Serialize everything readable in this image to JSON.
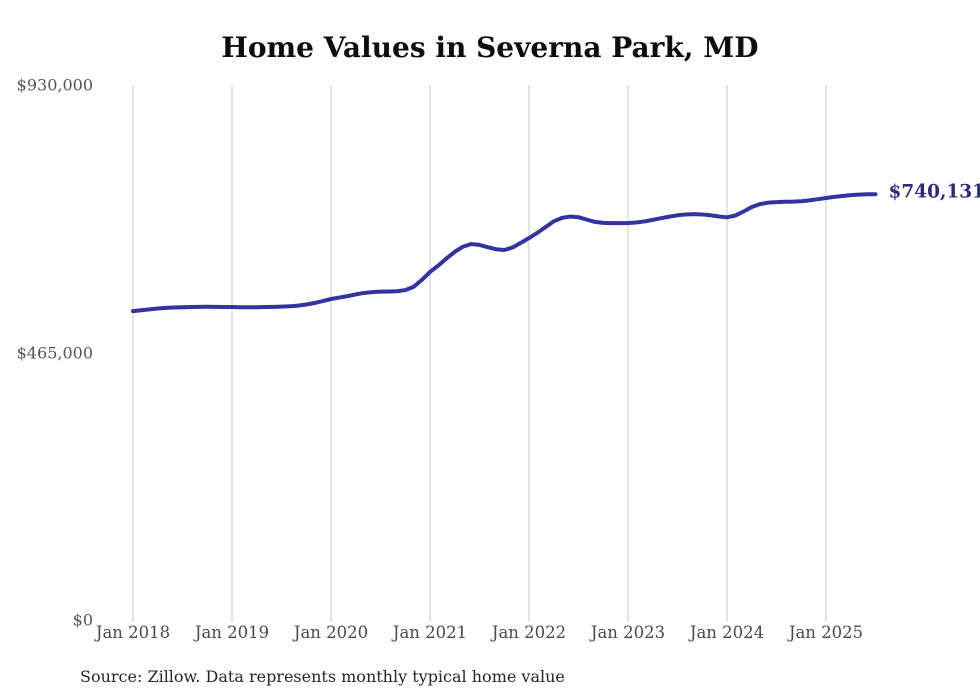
{
  "chart": {
    "title": "Home Values in Severna Park, MD",
    "end_label": "$740,131",
    "source": "Source: Zillow. Data represents monthly typical home value"
  },
  "chart_data": {
    "type": "line",
    "title": "Home Values in Severna Park, MD",
    "series_name": "Monthly typical home value",
    "x_start": "2018-01",
    "x_interval": "month",
    "x_tick_labels": [
      "Jan 2018",
      "Jan 2019",
      "Jan 2020",
      "Jan 2021",
      "Jan 2022",
      "Jan 2023",
      "Jan 2024",
      "Jan 2025"
    ],
    "y_ticks": [
      {
        "label": "$930,000",
        "value": 930000
      },
      {
        "label": "$465,000",
        "value": 465000
      },
      {
        "label": "$0",
        "value": 0
      }
    ],
    "ylim": [
      0,
      930000
    ],
    "grid": "vertical-only",
    "values": [
      537000,
      538500,
      540000,
      541500,
      542500,
      543200,
      543700,
      544100,
      544400,
      544500,
      544400,
      544200,
      544000,
      543700,
      543600,
      543700,
      544000,
      544300,
      544700,
      545300,
      546500,
      548500,
      551000,
      554500,
      558000,
      560500,
      563000,
      566000,
      568500,
      570000,
      570800,
      571000,
      571500,
      573500,
      579000,
      591000,
      605000,
      616000,
      628500,
      640000,
      649000,
      653500,
      652000,
      648000,
      644500,
      643200,
      647500,
      655500,
      664000,
      673000,
      683000,
      693000,
      699000,
      701300,
      700200,
      696000,
      692000,
      690400,
      689800,
      689900,
      690100,
      691000,
      692800,
      695500,
      698500,
      701200,
      703500,
      705000,
      705500,
      705000,
      703500,
      701500,
      700000,
      703000,
      710000,
      718000,
      723000,
      725500,
      726500,
      727000,
      727300,
      728000,
      729500,
      731500,
      733500,
      735500,
      737000,
      738500,
      739400,
      740000,
      740131
    ],
    "end_value": 740131,
    "colors": {
      "line": "#3431a0",
      "end_label": "#2e2b7f",
      "grid": "#c9c9c9",
      "axis_text": "#4d4d4d",
      "title_text": "#0d0d0d"
    }
  }
}
